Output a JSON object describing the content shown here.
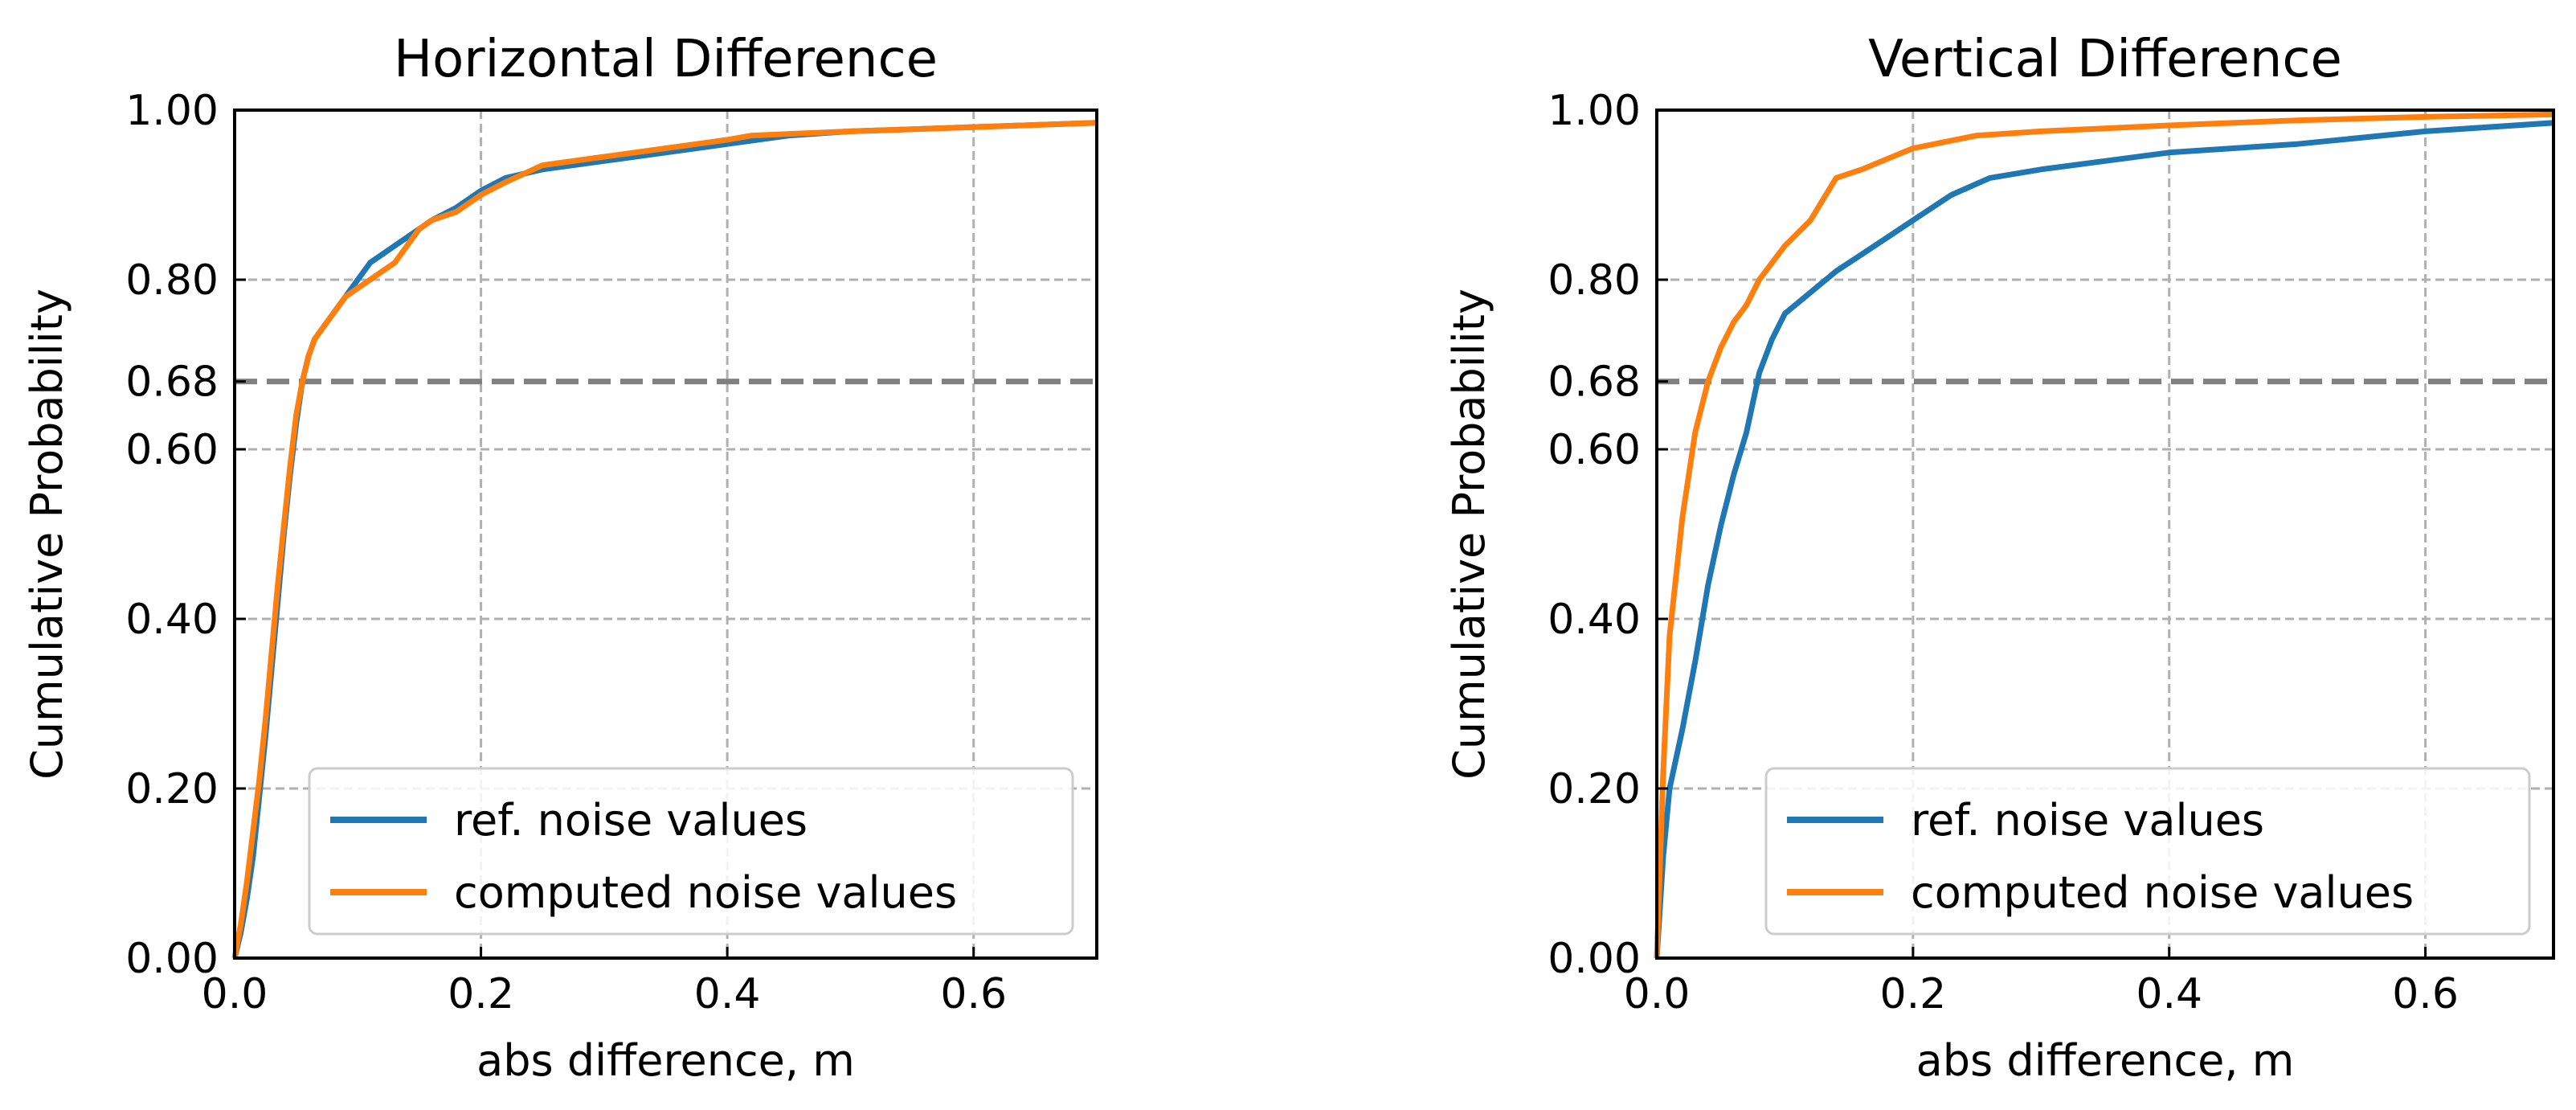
{
  "chart_data": [
    {
      "type": "line",
      "title": "Horizontal Difference",
      "xlabel": "abs difference, m",
      "ylabel": "Cumulative Probability",
      "xlim": [
        0.0,
        0.7
      ],
      "ylim": [
        0.0,
        1.0
      ],
      "x_ticks": [
        "0.0",
        "0.2",
        "0.4",
        "0.6"
      ],
      "x_tick_values": [
        0.0,
        0.2,
        0.4,
        0.6
      ],
      "y_ticks": [
        "0.00",
        "0.20",
        "0.40",
        "0.60",
        "0.68",
        "0.80",
        "1.00"
      ],
      "y_tick_values": [
        0.0,
        0.2,
        0.4,
        0.6,
        0.68,
        0.8,
        1.0
      ],
      "grid": true,
      "reference_line": {
        "y": 0.68,
        "style": "dashed",
        "color": "#808080"
      },
      "legend": {
        "placement": "lower-right",
        "entries": [
          "ref. noise values",
          "computed noise values"
        ]
      },
      "series": [
        {
          "name": "ref. noise values",
          "color": "#1f77b4",
          "x": [
            0.0,
            0.005,
            0.01,
            0.015,
            0.02,
            0.025,
            0.03,
            0.035,
            0.04,
            0.045,
            0.05,
            0.055,
            0.06,
            0.065,
            0.07,
            0.08,
            0.09,
            0.1,
            0.11,
            0.12,
            0.13,
            0.14,
            0.15,
            0.16,
            0.18,
            0.2,
            0.22,
            0.25,
            0.3,
            0.35,
            0.4,
            0.45,
            0.5,
            0.6,
            0.7
          ],
          "y": [
            0.0,
            0.03,
            0.07,
            0.12,
            0.19,
            0.26,
            0.34,
            0.42,
            0.5,
            0.57,
            0.63,
            0.68,
            0.71,
            0.73,
            0.74,
            0.76,
            0.78,
            0.8,
            0.82,
            0.83,
            0.84,
            0.85,
            0.86,
            0.87,
            0.885,
            0.905,
            0.92,
            0.93,
            0.94,
            0.95,
            0.96,
            0.97,
            0.975,
            0.98,
            0.985
          ]
        },
        {
          "name": "computed noise values",
          "color": "#ff7f0e",
          "x": [
            0.0,
            0.005,
            0.01,
            0.015,
            0.02,
            0.025,
            0.03,
            0.035,
            0.04,
            0.045,
            0.05,
            0.055,
            0.06,
            0.065,
            0.07,
            0.08,
            0.09,
            0.1,
            0.11,
            0.12,
            0.13,
            0.14,
            0.15,
            0.16,
            0.18,
            0.2,
            0.22,
            0.25,
            0.3,
            0.35,
            0.4,
            0.42,
            0.5,
            0.6,
            0.7
          ],
          "y": [
            0.0,
            0.04,
            0.09,
            0.15,
            0.21,
            0.28,
            0.36,
            0.44,
            0.51,
            0.58,
            0.64,
            0.68,
            0.71,
            0.73,
            0.74,
            0.76,
            0.78,
            0.79,
            0.8,
            0.81,
            0.82,
            0.84,
            0.86,
            0.87,
            0.88,
            0.9,
            0.915,
            0.935,
            0.945,
            0.955,
            0.965,
            0.97,
            0.975,
            0.98,
            0.985
          ]
        }
      ]
    },
    {
      "type": "line",
      "title": "Vertical Difference",
      "xlabel": "abs difference, m",
      "ylabel": "Cumulative Probability",
      "xlim": [
        0.0,
        0.7
      ],
      "ylim": [
        0.0,
        1.0
      ],
      "x_ticks": [
        "0.0",
        "0.2",
        "0.4",
        "0.6"
      ],
      "x_tick_values": [
        0.0,
        0.2,
        0.4,
        0.6
      ],
      "y_ticks": [
        "0.00",
        "0.20",
        "0.40",
        "0.60",
        "0.68",
        "0.80",
        "1.00"
      ],
      "y_tick_values": [
        0.0,
        0.2,
        0.4,
        0.6,
        0.68,
        0.8,
        1.0
      ],
      "grid": true,
      "reference_line": {
        "y": 0.68,
        "style": "dashed",
        "color": "#808080"
      },
      "legend": {
        "placement": "lower-right",
        "entries": [
          "ref. noise values",
          "computed noise values"
        ]
      },
      "series": [
        {
          "name": "ref. noise values",
          "color": "#1f77b4",
          "x": [
            0.0,
            0.005,
            0.01,
            0.02,
            0.03,
            0.04,
            0.05,
            0.06,
            0.07,
            0.08,
            0.09,
            0.1,
            0.12,
            0.14,
            0.16,
            0.18,
            0.2,
            0.23,
            0.26,
            0.3,
            0.35,
            0.4,
            0.45,
            0.5,
            0.6,
            0.7
          ],
          "y": [
            0.0,
            0.12,
            0.2,
            0.27,
            0.35,
            0.44,
            0.51,
            0.57,
            0.62,
            0.69,
            0.73,
            0.76,
            0.785,
            0.81,
            0.83,
            0.85,
            0.87,
            0.9,
            0.92,
            0.93,
            0.94,
            0.95,
            0.955,
            0.96,
            0.975,
            0.985
          ]
        },
        {
          "name": "computed noise values",
          "color": "#ff7f0e",
          "x": [
            0.0,
            0.005,
            0.01,
            0.015,
            0.02,
            0.03,
            0.04,
            0.05,
            0.06,
            0.07,
            0.08,
            0.09,
            0.1,
            0.12,
            0.14,
            0.16,
            0.2,
            0.25,
            0.3,
            0.4,
            0.5,
            0.6,
            0.7
          ],
          "y": [
            0.0,
            0.22,
            0.38,
            0.45,
            0.52,
            0.62,
            0.68,
            0.72,
            0.75,
            0.77,
            0.8,
            0.82,
            0.84,
            0.87,
            0.92,
            0.93,
            0.955,
            0.97,
            0.975,
            0.982,
            0.988,
            0.992,
            0.995
          ]
        }
      ]
    }
  ]
}
